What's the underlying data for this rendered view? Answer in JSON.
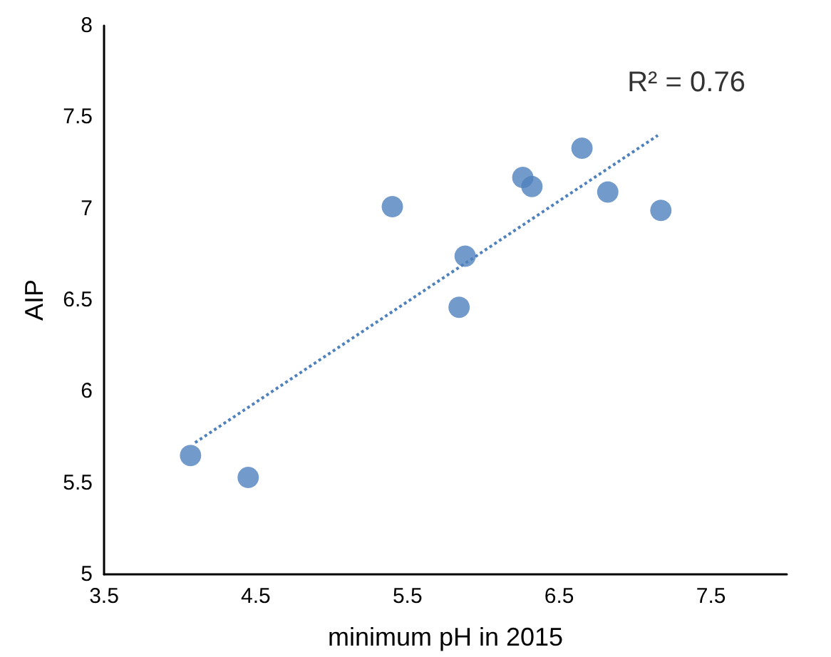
{
  "chart_data": {
    "type": "scatter",
    "xlabel": "minimum pH in 2015",
    "ylabel": "AIP",
    "xlim": [
      3.5,
      8
    ],
    "xticks": [
      3.5,
      4.5,
      5.5,
      6.5,
      7.5
    ],
    "ylim": [
      5,
      8
    ],
    "yticks": [
      5,
      5.5,
      6,
      6.5,
      7,
      7.5,
      8
    ],
    "grid": false,
    "marker": "circle",
    "annotations": [
      {
        "text": "R² = 0.76",
        "x": 7.15,
        "y": 7.4
      }
    ],
    "series": [
      {
        "color": "#4f81bd",
        "x": [
          4.07,
          4.45,
          5.4,
          5.84,
          5.88,
          6.26,
          6.32,
          6.65,
          6.82,
          7.17
        ],
        "values": [
          5.65,
          5.53,
          7.01,
          6.46,
          6.74,
          7.17,
          7.12,
          7.33,
          7.09,
          6.99
        ]
      },
      {
        "type": "line",
        "color": "#4f81bd",
        "line_style": "dotted",
        "marker": "none",
        "x": [
          4.1,
          7.15
        ],
        "values": [
          5.72,
          7.4
        ]
      }
    ]
  }
}
